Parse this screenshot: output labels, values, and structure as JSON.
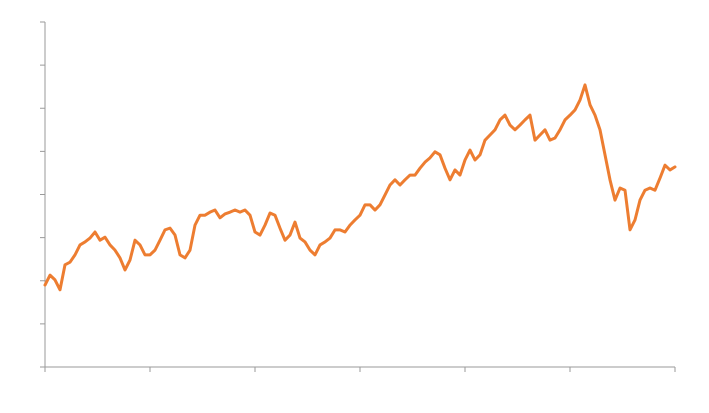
{
  "chart_data": {
    "type": "line",
    "x": [
      0,
      1,
      2,
      3,
      4,
      5,
      6,
      7,
      8,
      9,
      10,
      11,
      12,
      13,
      14,
      15,
      16,
      17,
      18,
      19,
      20,
      21,
      22,
      23,
      24,
      25,
      26,
      27,
      28,
      29,
      30,
      31,
      32,
      33,
      34,
      35,
      36,
      37,
      38,
      39,
      40,
      41,
      42,
      43,
      44,
      45,
      46,
      47,
      48,
      49,
      50,
      51,
      52,
      53,
      54,
      55,
      56,
      57,
      58,
      59,
      60,
      61,
      62,
      63,
      64,
      65,
      66,
      67,
      68,
      69,
      70,
      71,
      72,
      73,
      74,
      75,
      76,
      77,
      78,
      79,
      80,
      81,
      82,
      83,
      84,
      85,
      86,
      87,
      88,
      89,
      90,
      91,
      92,
      93,
      94,
      95,
      96,
      97,
      98,
      99,
      100,
      101,
      102,
      103,
      104,
      105,
      106,
      107,
      108,
      109,
      110,
      111,
      112,
      113,
      114,
      115,
      116,
      117,
      118,
      119,
      120,
      121,
      122,
      123,
      124,
      125,
      126
    ],
    "series": [
      {
        "color": "#ed7d31",
        "values": [
          1.9,
          2.13,
          2.02,
          1.79,
          2.37,
          2.43,
          2.6,
          2.83,
          2.9,
          2.99,
          3.13,
          2.94,
          3.01,
          2.83,
          2.71,
          2.53,
          2.25,
          2.48,
          2.94,
          2.83,
          2.6,
          2.6,
          2.71,
          2.94,
          3.18,
          3.22,
          3.06,
          2.6,
          2.53,
          2.71,
          3.29,
          3.52,
          3.52,
          3.59,
          3.64,
          3.46,
          3.55,
          3.59,
          3.64,
          3.59,
          3.64,
          3.52,
          3.13,
          3.06,
          3.29,
          3.57,
          3.52,
          3.22,
          2.94,
          3.06,
          3.36,
          2.99,
          2.9,
          2.71,
          2.6,
          2.83,
          2.9,
          2.99,
          3.18,
          3.18,
          3.13,
          3.29,
          3.41,
          3.52,
          3.76,
          3.76,
          3.64,
          3.76,
          3.99,
          4.22,
          4.34,
          4.22,
          4.34,
          4.45,
          4.45,
          4.61,
          4.75,
          4.85,
          4.99,
          4.92,
          4.61,
          4.34,
          4.57,
          4.45,
          4.8,
          5.03,
          4.8,
          4.92,
          5.26,
          5.38,
          5.5,
          5.73,
          5.84,
          5.61,
          5.5,
          5.61,
          5.73,
          5.84,
          5.26,
          5.38,
          5.5,
          5.26,
          5.31,
          5.5,
          5.73,
          5.84,
          5.96,
          6.19,
          6.54,
          6.08,
          5.84,
          5.5,
          4.92,
          4.34,
          3.87,
          4.15,
          4.1,
          3.18,
          3.41,
          3.87,
          4.1,
          4.15,
          4.1,
          4.38,
          4.68,
          4.57,
          4.64
        ]
      }
    ],
    "xlim": [
      0,
      126
    ],
    "xticks": [
      0,
      21,
      42,
      63,
      84,
      105,
      126
    ],
    "ylim": [
      0,
      8
    ],
    "yticks": [
      0,
      1,
      2,
      3,
      4,
      5,
      6,
      7,
      8
    ]
  }
}
